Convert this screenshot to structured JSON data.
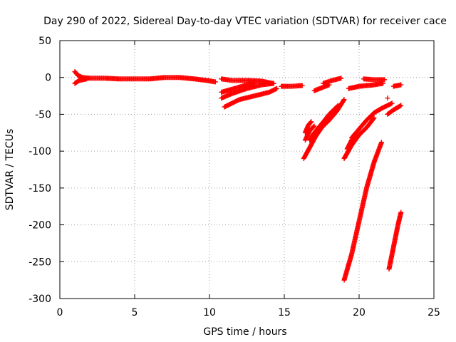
{
  "chart_data": {
    "type": "scatter",
    "title": "Day 290 of 2022, Sidereal Day-to-day VTEC variation (SDTVAR) for receiver cace",
    "xlabel": "GPS time / hours",
    "ylabel": "SDTVAR / TECUs",
    "xlim": [
      0,
      25
    ],
    "ylim": [
      -300,
      50
    ],
    "x_ticks": [
      0,
      5,
      10,
      15,
      20,
      25
    ],
    "y_ticks": [
      -300,
      -250,
      -200,
      -150,
      -100,
      -50,
      0,
      50
    ],
    "grid": true,
    "marker": "+",
    "colors": {
      "series": "#ff0000",
      "grid": "#a0a0a0",
      "axis": "#000000"
    },
    "series": [
      {
        "tracks": [
          [
            [
              1.0,
              8
            ],
            [
              1.2,
              3
            ],
            [
              1.5,
              0
            ],
            [
              2.0,
              -1
            ],
            [
              3.0,
              -1
            ],
            [
              4.0,
              -2
            ],
            [
              5.0,
              -2
            ],
            [
              6.0,
              -2
            ],
            [
              7.0,
              0
            ],
            [
              8.0,
              0
            ],
            [
              9.0,
              -2
            ],
            [
              9.8,
              -4
            ],
            [
              10.4,
              -6
            ]
          ],
          [
            [
              1.0,
              -8
            ],
            [
              1.3,
              -4
            ],
            [
              1.8,
              -2
            ]
          ],
          [
            [
              10.8,
              -2
            ],
            [
              11.5,
              -4
            ],
            [
              12.5,
              -4
            ],
            [
              13.5,
              -5
            ],
            [
              14.2,
              -8
            ]
          ],
          [
            [
              10.8,
              -28
            ],
            [
              11.5,
              -22
            ],
            [
              12.5,
              -15
            ],
            [
              13.5,
              -10
            ],
            [
              14.3,
              -8
            ]
          ],
          [
            [
              10.8,
              -20
            ],
            [
              11.5,
              -16
            ],
            [
              12.5,
              -10
            ],
            [
              13.0,
              -8
            ]
          ],
          [
            [
              11.0,
              -40
            ],
            [
              12.0,
              -30
            ],
            [
              13.0,
              -25
            ],
            [
              14.0,
              -20
            ],
            [
              14.5,
              -15
            ]
          ],
          [
            [
              14.8,
              -12
            ],
            [
              15.5,
              -12
            ],
            [
              16.2,
              -11
            ]
          ],
          [
            [
              16.3,
              -110
            ],
            [
              16.7,
              -95
            ],
            [
              17.1,
              -80
            ],
            [
              17.5,
              -68
            ],
            [
              18.0,
              -58
            ],
            [
              18.5,
              -46
            ],
            [
              19.0,
              -30
            ]
          ],
          [
            [
              16.4,
              -85
            ],
            [
              16.7,
              -72
            ],
            [
              17.0,
              -66
            ]
          ],
          [
            [
              16.4,
              -75
            ],
            [
              16.6,
              -65
            ],
            [
              16.8,
              -60
            ]
          ],
          [
            [
              16.7,
              -85
            ],
            [
              17.0,
              -75
            ],
            [
              17.5,
              -63
            ],
            [
              18.0,
              -50
            ],
            [
              18.6,
              -38
            ]
          ],
          [
            [
              17.0,
              -18
            ],
            [
              17.5,
              -14
            ],
            [
              18.0,
              -10
            ]
          ],
          [
            [
              17.6,
              -8
            ],
            [
              18.2,
              -4
            ],
            [
              18.8,
              -1
            ]
          ],
          [
            [
              19.0,
              -110
            ],
            [
              19.5,
              -92
            ],
            [
              20.0,
              -78
            ],
            [
              20.5,
              -68
            ],
            [
              21.0,
              -55
            ]
          ],
          [
            [
              19.2,
              -97
            ],
            [
              19.5,
              -85
            ],
            [
              19.8,
              -78
            ]
          ],
          [
            [
              19.5,
              -82
            ],
            [
              20.0,
              -70
            ],
            [
              20.5,
              -58
            ],
            [
              21.0,
              -48
            ],
            [
              21.5,
              -42
            ],
            [
              22.2,
              -35
            ]
          ],
          [
            [
              19.3,
              -15
            ],
            [
              20.0,
              -12
            ],
            [
              21.0,
              -10
            ],
            [
              21.6,
              -8
            ]
          ],
          [
            [
              20.3,
              -2
            ],
            [
              21.0,
              -3
            ],
            [
              21.7,
              -3
            ]
          ],
          [
            [
              21.9,
              -28
            ]
          ],
          [
            [
              22.3,
              -12
            ],
            [
              22.8,
              -10
            ]
          ],
          [
            [
              21.9,
              -50
            ],
            [
              22.3,
              -44
            ],
            [
              22.8,
              -38
            ]
          ],
          [
            [
              19.0,
              -275
            ],
            [
              19.5,
              -240
            ],
            [
              20.0,
              -195
            ],
            [
              20.5,
              -150
            ],
            [
              21.0,
              -115
            ],
            [
              21.5,
              -88
            ]
          ],
          [
            [
              22.0,
              -260
            ],
            [
              22.3,
              -230
            ],
            [
              22.6,
              -200
            ],
            [
              22.8,
              -183
            ]
          ]
        ]
      }
    ]
  }
}
